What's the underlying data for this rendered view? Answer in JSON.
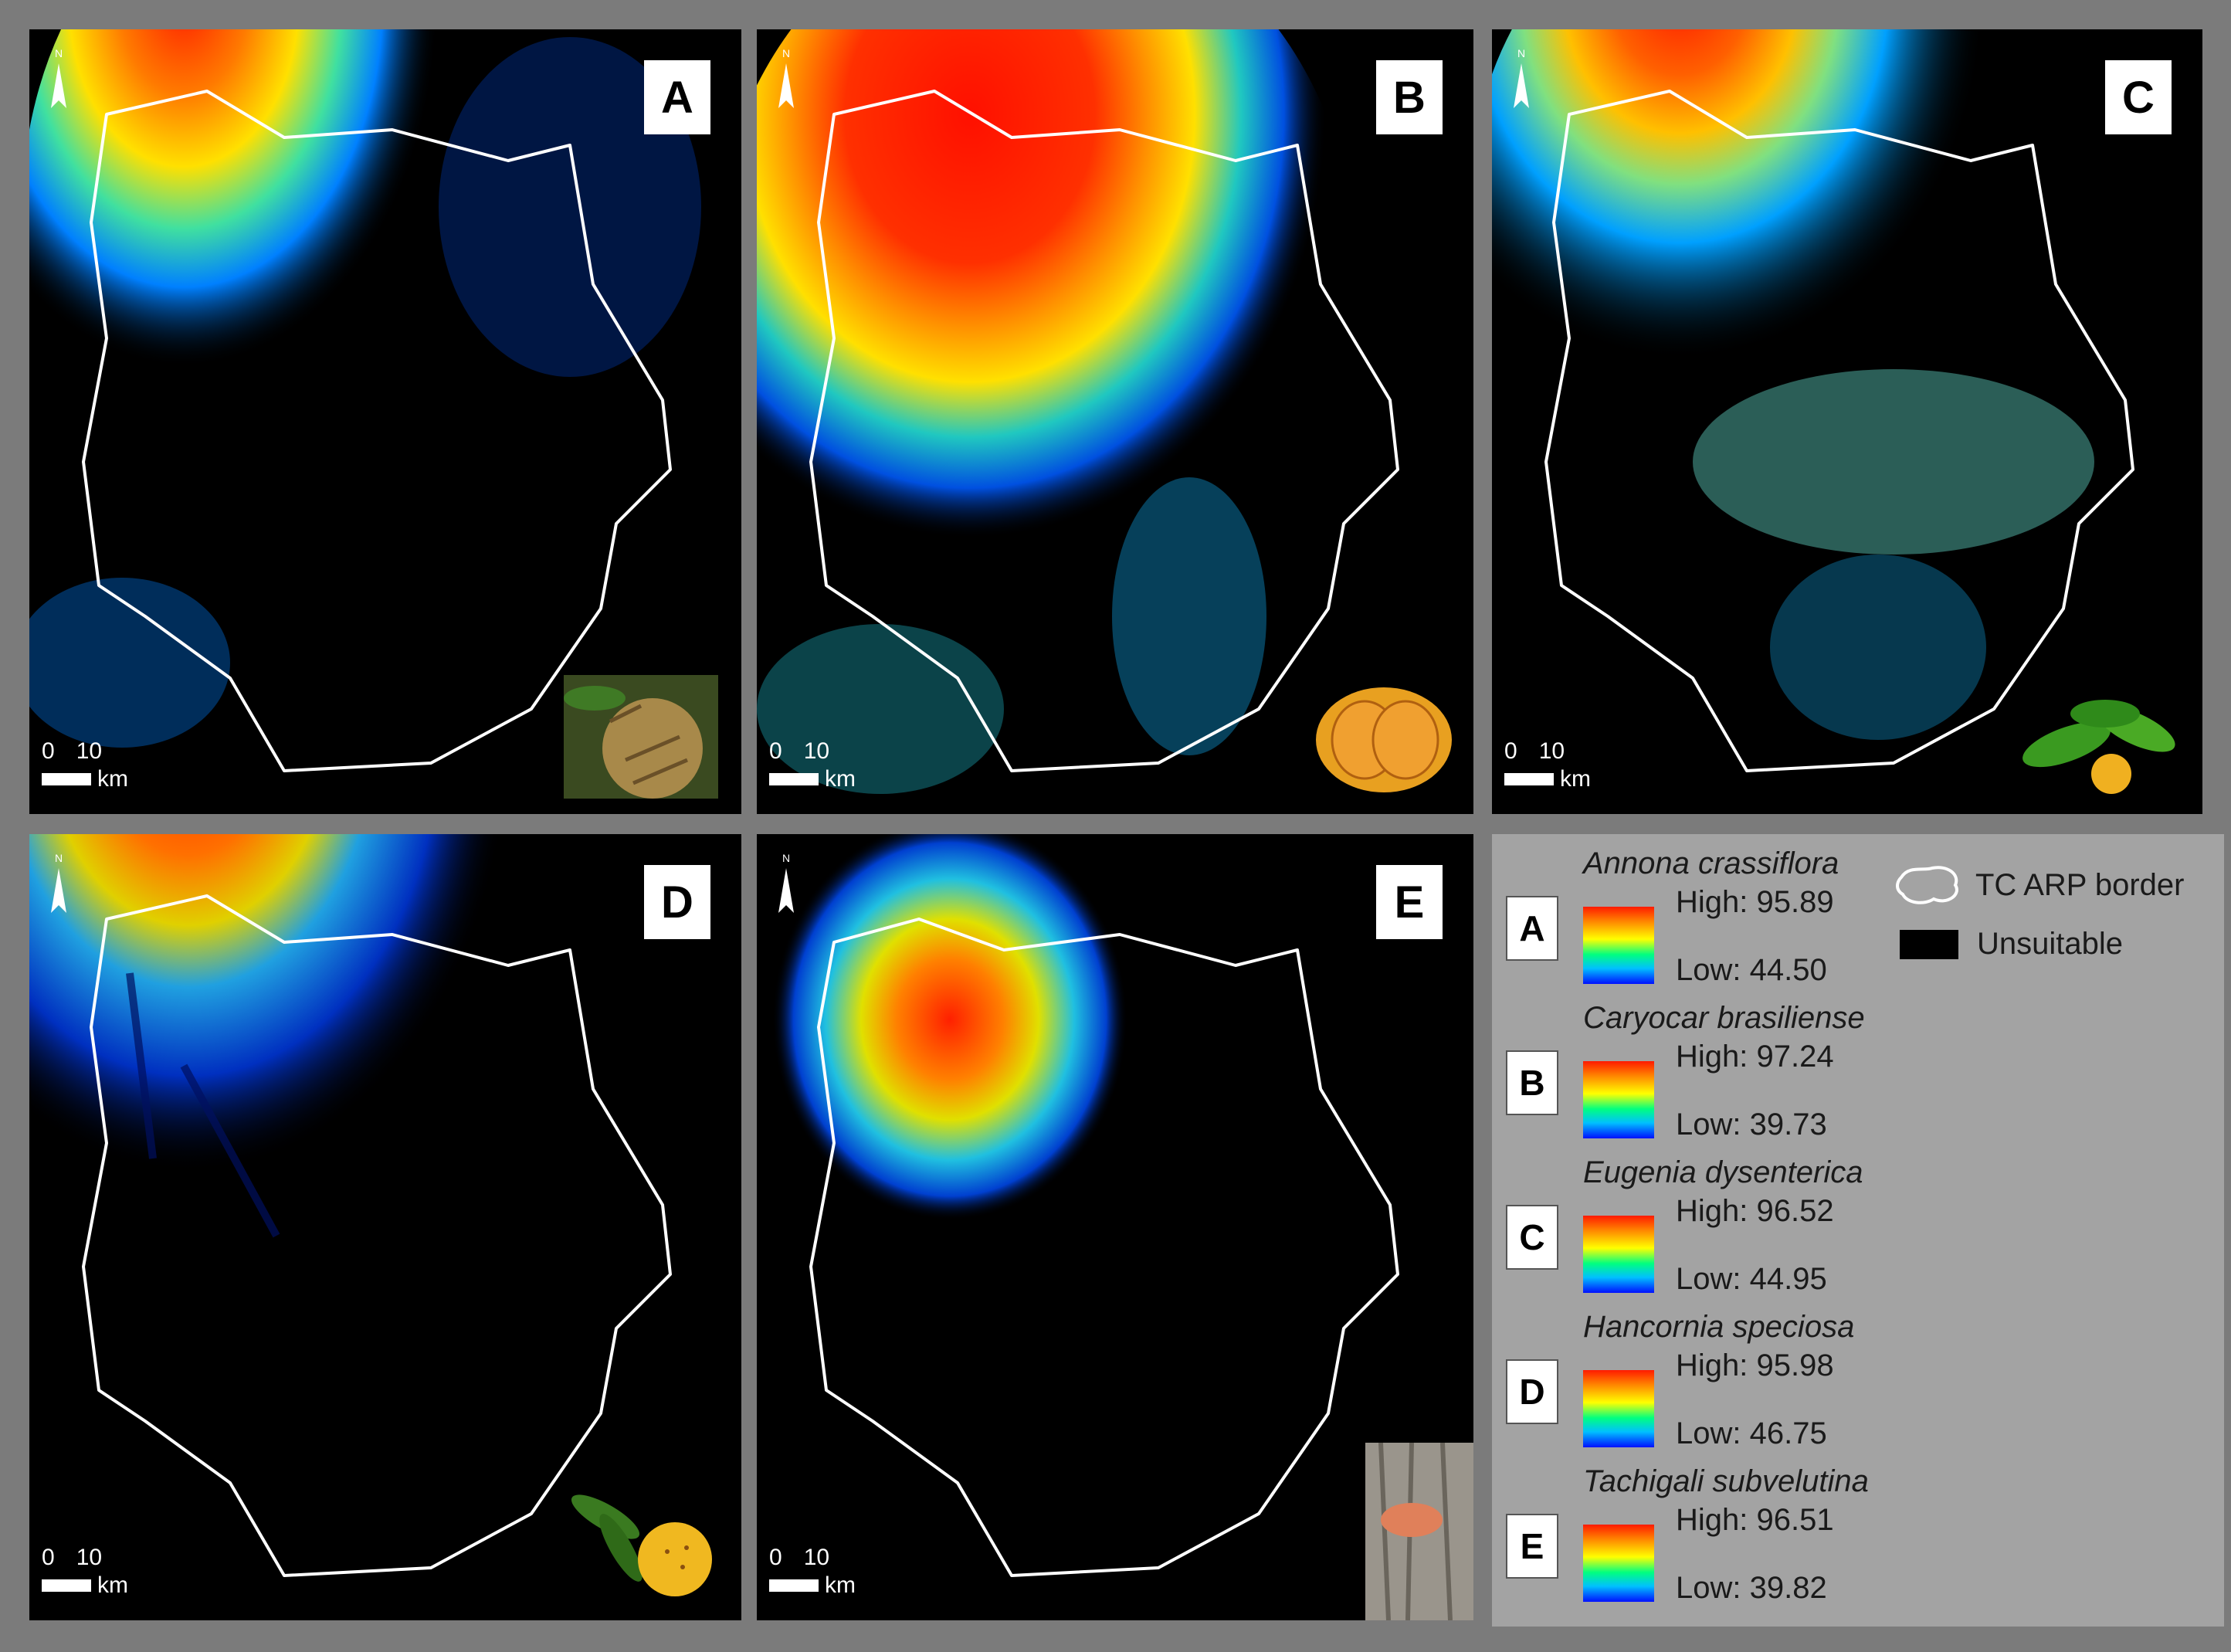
{
  "panels": [
    {
      "label": "A",
      "species": "Annona crassiflora",
      "thumb": "sugar-apple-fruit",
      "hotspot": "nw"
    },
    {
      "label": "B",
      "species": "Caryocar brasiliense",
      "thumb": "pequi-fruit-halves",
      "hotspot": "north-wide"
    },
    {
      "label": "C",
      "species": "Eugenia dysenterica",
      "thumb": "cagaita-fruit-leaves",
      "hotspot": "nw"
    },
    {
      "label": "D",
      "species": "Hancornia speciosa",
      "thumb": "mangaba-fruit",
      "hotspot": "nw"
    },
    {
      "label": "E",
      "species": "Tachigali subvelutina",
      "thumb": "tree-bark",
      "hotspot": "small-north"
    }
  ],
  "scale": {
    "zero": "0",
    "ten": "10",
    "unit": "km"
  },
  "north_label": "N",
  "legend": {
    "items": [
      {
        "label": "A",
        "name": "Annona crassiflora",
        "high": "High: 95.89",
        "low": "Low: 44.50"
      },
      {
        "label": "B",
        "name": "Caryocar brasiliense",
        "high": "High: 97.24",
        "low": "Low: 39.73"
      },
      {
        "label": "C",
        "name": "Eugenia dysenterica",
        "high": "High: 96.52",
        "low": "Low: 44.95"
      },
      {
        "label": "D",
        "name": "Hancornia speciosa",
        "high": "High: 95.98",
        "low": "Low: 46.75"
      },
      {
        "label": "E",
        "name": "Tachigali subvelutina",
        "high": "High: 96.51",
        "low": "Low: 39.82"
      }
    ],
    "border_label": "TC ARP border",
    "unsuitable_label": "Unsuitable",
    "colors": {
      "high": "#ff1a00",
      "mid": "#ffff00",
      "low": "#0010ff",
      "unsuitable": "#000000",
      "border": "#ffffff"
    }
  }
}
